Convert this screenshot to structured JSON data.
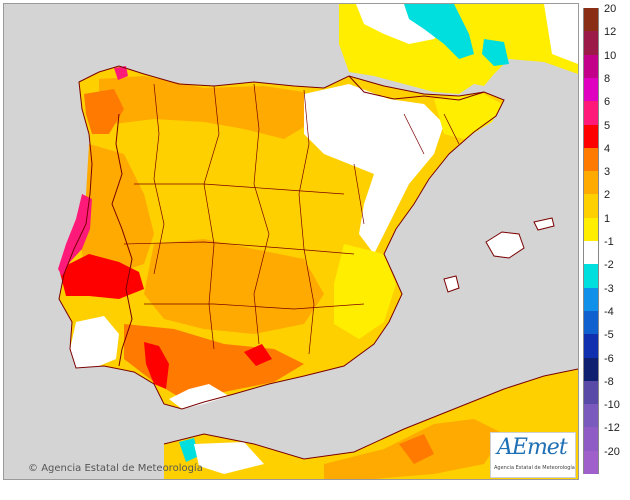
{
  "copyright": "Agencia Estatal de Meteorología",
  "logo": {
    "wordmark": "AEmet",
    "subtitle": "Agencia Estatal de Meteorología"
  },
  "legend": {
    "labels": [
      "20",
      "12",
      "10",
      "8",
      "6",
      "5",
      "4",
      "3",
      "2",
      "1",
      "-1",
      "-2",
      "-3",
      "-4",
      "-5",
      "-6",
      "-8",
      "-10",
      "-12",
      "-20"
    ],
    "colors": [
      "#8b2e16",
      "#9b1a48",
      "#c2008a",
      "#e000c0",
      "#ff1a7a",
      "#ff0000",
      "#ff7a00",
      "#ffaa00",
      "#ffd000",
      "#ffee00",
      "#ffffff",
      "#00dede",
      "#1090e8",
      "#1060d0",
      "#1030b0",
      "#102070",
      "#5a4aa8",
      "#7a5abc",
      "#8e5cc4",
      "#a060cc"
    ]
  },
  "colors": {
    "sea": "#d4d4d4",
    "border": "#7a0000",
    "warm1": "#ffee00",
    "warm2": "#ffd000",
    "warm3": "#ffaa00",
    "warm4": "#ff7a00",
    "hot": "#ff0000",
    "very-hot": "#ff1a7a",
    "cool": "#00dede",
    "neutral": "#ffffff"
  }
}
